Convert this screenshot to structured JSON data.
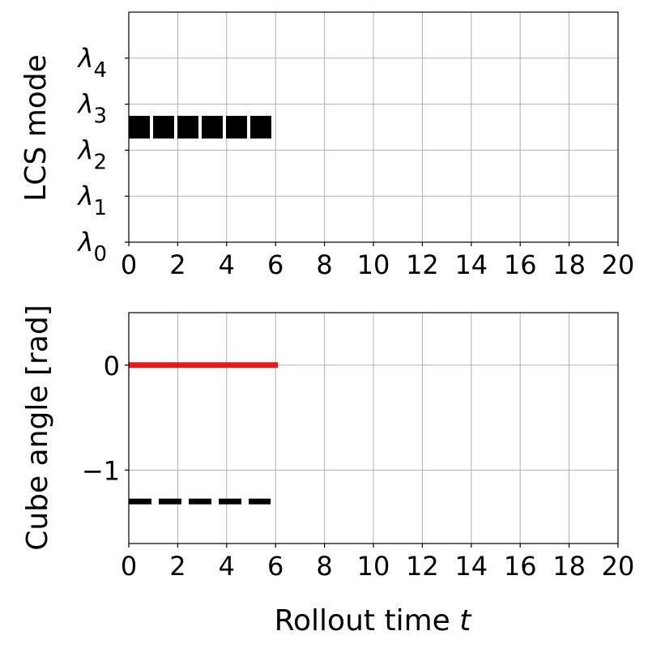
{
  "chart_data": [
    {
      "type": "line",
      "title": "",
      "xlabel": "",
      "ylabel": "LCS mode",
      "xlim": [
        0,
        20
      ],
      "ylim": [
        0,
        5
      ],
      "xticks": [
        "0",
        "2",
        "4",
        "6",
        "8",
        "10",
        "12",
        "14",
        "16",
        "18",
        "20"
      ],
      "xtick_values": [
        0,
        2,
        4,
        6,
        8,
        10,
        12,
        14,
        16,
        18,
        20
      ],
      "ytick_values": [
        0,
        1,
        2,
        3,
        4
      ],
      "ytick_labels": [
        {
          "base": "λ",
          "sub": "0"
        },
        {
          "base": "λ",
          "sub": "1"
        },
        {
          "base": "λ",
          "sub": "2"
        },
        {
          "base": "λ",
          "sub": "3"
        },
        {
          "base": "λ",
          "sub": "4"
        }
      ],
      "grid": true,
      "series": [
        {
          "color": "#000000",
          "style": "dashed",
          "x": [
            0,
            5.9
          ],
          "y": [
            2.5,
            2.5
          ]
        }
      ]
    },
    {
      "type": "line",
      "title": "",
      "xlabel": "Rollout time t",
      "xlabel_text": "Rollout time ",
      "xlabel_var": "t",
      "ylabel": "Cube angle [rad]",
      "xlim": [
        0,
        20
      ],
      "ylim": [
        -1.7,
        0.5
      ],
      "xticks": [
        "0",
        "2",
        "4",
        "6",
        "8",
        "10",
        "12",
        "14",
        "16",
        "18",
        "20"
      ],
      "xtick_values": [
        0,
        2,
        4,
        6,
        8,
        10,
        12,
        14,
        16,
        18,
        20
      ],
      "ytick_values": [
        -1,
        0
      ],
      "ytick_labels": [
        "−1",
        "0"
      ],
      "grid": true,
      "series": [
        {
          "color": "#e41a1c",
          "style": "solid",
          "x": [
            0,
            6.1
          ],
          "y": [
            0,
            0
          ]
        },
        {
          "color": "#000000",
          "style": "dashed",
          "x": [
            0,
            5.8
          ],
          "y": [
            -1.3,
            -1.3
          ]
        }
      ]
    }
  ]
}
